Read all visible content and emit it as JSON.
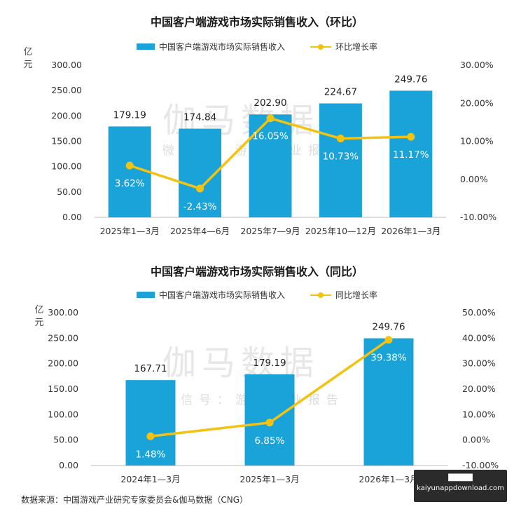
{
  "colors": {
    "bar": "#1aa3d9",
    "line": "#f2c313",
    "axis_text": "#333333",
    "label_on_bar": "#ffffff",
    "grid": "#e6e6e6"
  },
  "chart_data": [
    {
      "type": "bar+line",
      "title": "中国客户端游戏市场实际销售收入（环比）",
      "ylabel": "亿元",
      "legend": {
        "bar": "中国客户端游戏市场实际销售收入",
        "line": "环比增长率",
        "placement": "top-center"
      },
      "categories": [
        "2025年1—3月",
        "2025年4—6月",
        "2025年7—9月",
        "2025年10—12月",
        "2026年1—3月"
      ],
      "series": [
        {
          "name": "中国客户端游戏市场实际销售收入",
          "kind": "bar",
          "axis": "left",
          "values": [
            179.19,
            174.84,
            202.9,
            224.67,
            249.76
          ],
          "labels": [
            "179.19",
            "174.84",
            "202.90",
            "224.67",
            "249.76"
          ]
        },
        {
          "name": "环比增长率",
          "kind": "line",
          "axis": "right",
          "values": [
            3.62,
            -2.43,
            16.05,
            10.73,
            11.17
          ],
          "labels": [
            "3.62%",
            "-2.43%",
            "16.05%",
            "10.73%",
            "11.17%"
          ]
        }
      ],
      "left_axis": {
        "range": [
          0,
          300
        ],
        "ticks": [
          "0.00",
          "50.00",
          "100.00",
          "150.00",
          "200.00",
          "250.00",
          "300.00"
        ]
      },
      "right_axis": {
        "range": [
          -10,
          30
        ],
        "ticks": [
          "-10.00%",
          "0.00%",
          "10.00%",
          "20.00%",
          "30.00%"
        ]
      },
      "grid": false
    },
    {
      "type": "bar+line",
      "title": "中国客户端游戏市场实际销售收入（同比）",
      "ylabel": "亿元",
      "legend": {
        "bar": "中国客户端游戏市场实际销售收入",
        "line": "同比增长率",
        "placement": "top-center"
      },
      "categories": [
        "2024年1—3月",
        "2025年1—3月",
        "2026年1—3月"
      ],
      "series": [
        {
          "name": "中国客户端游戏市场实际销售收入",
          "kind": "bar",
          "axis": "left",
          "values": [
            167.71,
            179.19,
            249.76
          ],
          "labels": [
            "167.71",
            "179.19",
            "249.76"
          ]
        },
        {
          "name": "同比增长率",
          "kind": "line",
          "axis": "right",
          "values": [
            1.48,
            6.85,
            39.38
          ],
          "labels": [
            "1.48%",
            "6.85%",
            "39.38%"
          ]
        }
      ],
      "left_axis": {
        "range": [
          0,
          300
        ],
        "ticks": [
          "0.00",
          "50.00",
          "100.00",
          "150.00",
          "200.00",
          "250.00",
          "300.00"
        ]
      },
      "right_axis": {
        "range": [
          -10,
          50
        ],
        "ticks": [
          "-10.00%",
          "0.00%",
          "10.00%",
          "20.00%",
          "30.00%",
          "40.00%",
          "50.00%"
        ]
      },
      "grid": false
    }
  ],
  "watermark": {
    "big": "伽马数据",
    "small": "微信号：游戏产业报告"
  },
  "source_note": "数据来源：中国游戏产业研究专家委员会&伽马数据（CNG）",
  "site_badge": {
    "line1": "█████",
    "line2": "kaiyunappdownload.com"
  }
}
